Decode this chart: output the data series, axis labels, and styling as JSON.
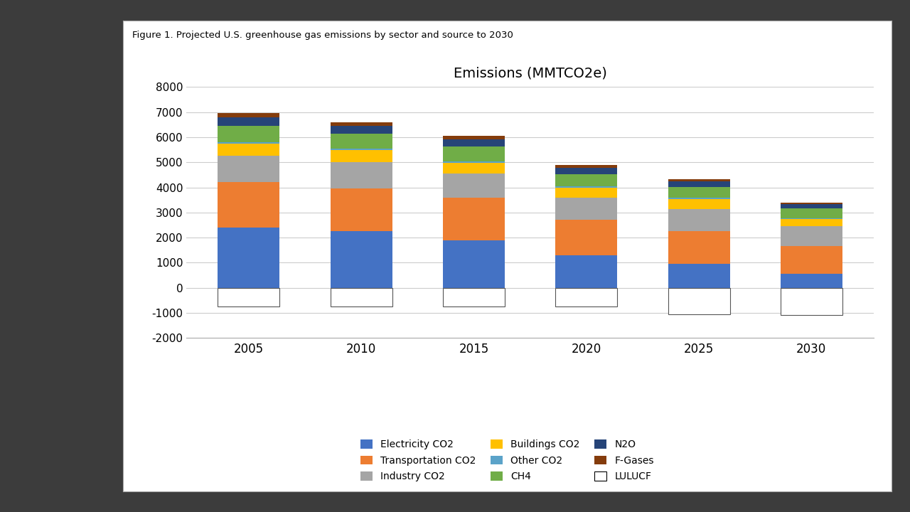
{
  "years": [
    2005,
    2010,
    2015,
    2020,
    2025,
    2030
  ],
  "title": "Emissions (MMTCO2e)",
  "figure_title": "Figure 1. Projected U.S. greenhouse gas emissions by sector and source to 2030",
  "series": [
    {
      "label": "Electricity CO2",
      "color": "#4472C4",
      "values": [
        2400,
        2250,
        1900,
        1300,
        950,
        550
      ]
    },
    {
      "label": "Transportation CO2",
      "color": "#ED7D31",
      "values": [
        1800,
        1700,
        1700,
        1400,
        1300,
        1100
      ]
    },
    {
      "label": "Industry CO2",
      "color": "#A5A5A5",
      "values": [
        1050,
        1050,
        950,
        900,
        900,
        800
      ]
    },
    {
      "label": "Buildings CO2",
      "color": "#FFC000",
      "values": [
        480,
        480,
        420,
        380,
        380,
        280
      ]
    },
    {
      "label": "Other CO2",
      "color": "#5BA3C9",
      "values": [
        70,
        70,
        70,
        60,
        55,
        50
      ]
    },
    {
      "label": "CH4",
      "color": "#70AD47",
      "values": [
        650,
        580,
        580,
        480,
        440,
        380
      ]
    },
    {
      "label": "N2O",
      "color": "#264478",
      "values": [
        340,
        320,
        300,
        250,
        230,
        180
      ]
    },
    {
      "label": "F-Gases",
      "color": "#843C0C",
      "values": [
        160,
        150,
        130,
        120,
        80,
        60
      ]
    },
    {
      "label": "LULUCF",
      "color": "#FFFFFF",
      "values": [
        -750,
        -750,
        -750,
        -750,
        -1050,
        -1100
      ]
    }
  ],
  "ylim": [
    -2000,
    8000
  ],
  "yticks": [
    -2000,
    -1000,
    0,
    1000,
    2000,
    3000,
    4000,
    5000,
    6000,
    7000,
    8000
  ],
  "background_color": "#FFFFFF",
  "panel_background": "#FFFFFF",
  "outer_background": "#3C3C3C",
  "grid_color": "#CCCCCC",
  "bar_width": 0.55,
  "edge_color": "#000000"
}
